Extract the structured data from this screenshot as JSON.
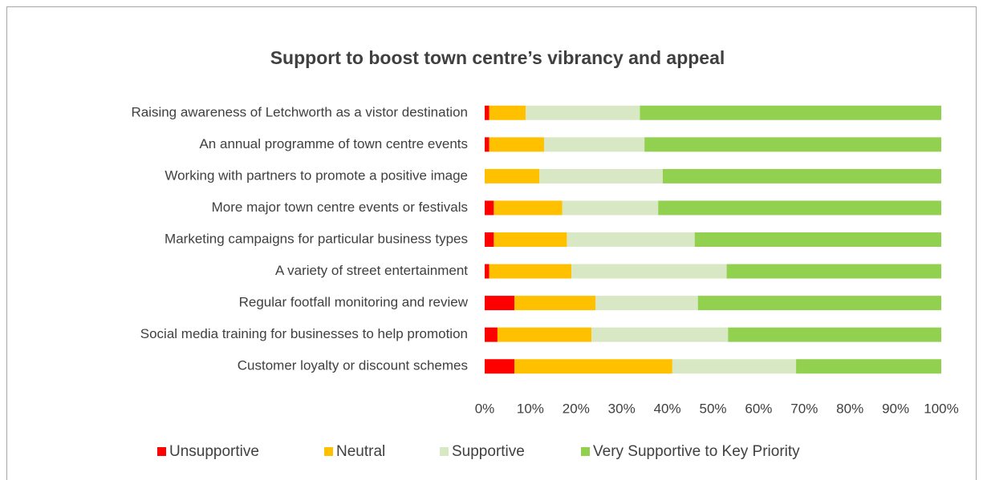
{
  "chart_data": {
    "type": "stacked-bar-horizontal",
    "title": "Support to boost town centre’s vibrancy and appeal",
    "categories": [
      "Raising awareness of Letchworth as a vistor destination",
      "An annual programme of town centre events",
      "Working with partners to  promote a positive image",
      "More major town centre events or festivals",
      "Marketing campaigns for particular business types",
      "A variety of street entertainment",
      "Regular footfall monitoring and review",
      "Social media training for businesses to help promotion",
      "Customer loyalty or discount schemes"
    ],
    "series": [
      {
        "name": "Unsupportive",
        "color": "#ff0000",
        "values": [
          1,
          1,
          0,
          2,
          2,
          1,
          6.5,
          2.8,
          6.5
        ]
      },
      {
        "name": "Neutral",
        "color": "#ffc000",
        "values": [
          8,
          12,
          12,
          15,
          16,
          18,
          17.8,
          20.6,
          34.6
        ]
      },
      {
        "name": "Supportive",
        "color": "#d9e8c4",
        "values": [
          25,
          22,
          27,
          21,
          28,
          34,
          22.4,
          29.9,
          27.1
        ]
      },
      {
        "name": "Very Supportive to Key Priority",
        "color": "#92d050",
        "values": [
          66,
          65,
          61,
          62,
          54,
          47,
          53.3,
          46.7,
          31.8
        ]
      }
    ],
    "xlim": [
      0,
      100
    ],
    "xticks": [
      {
        "value": 0,
        "label": "0%"
      },
      {
        "value": 10,
        "label": "10%"
      },
      {
        "value": 20,
        "label": "20%"
      },
      {
        "value": 30,
        "label": "30%"
      },
      {
        "value": 40,
        "label": "40%"
      },
      {
        "value": 50,
        "label": "50%"
      },
      {
        "value": 60,
        "label": "60%"
      },
      {
        "value": 70,
        "label": "70%"
      },
      {
        "value": 80,
        "label": "80%"
      },
      {
        "value": 90,
        "label": "90%"
      },
      {
        "value": 100,
        "label": "100%"
      }
    ],
    "legend": "bottom"
  }
}
